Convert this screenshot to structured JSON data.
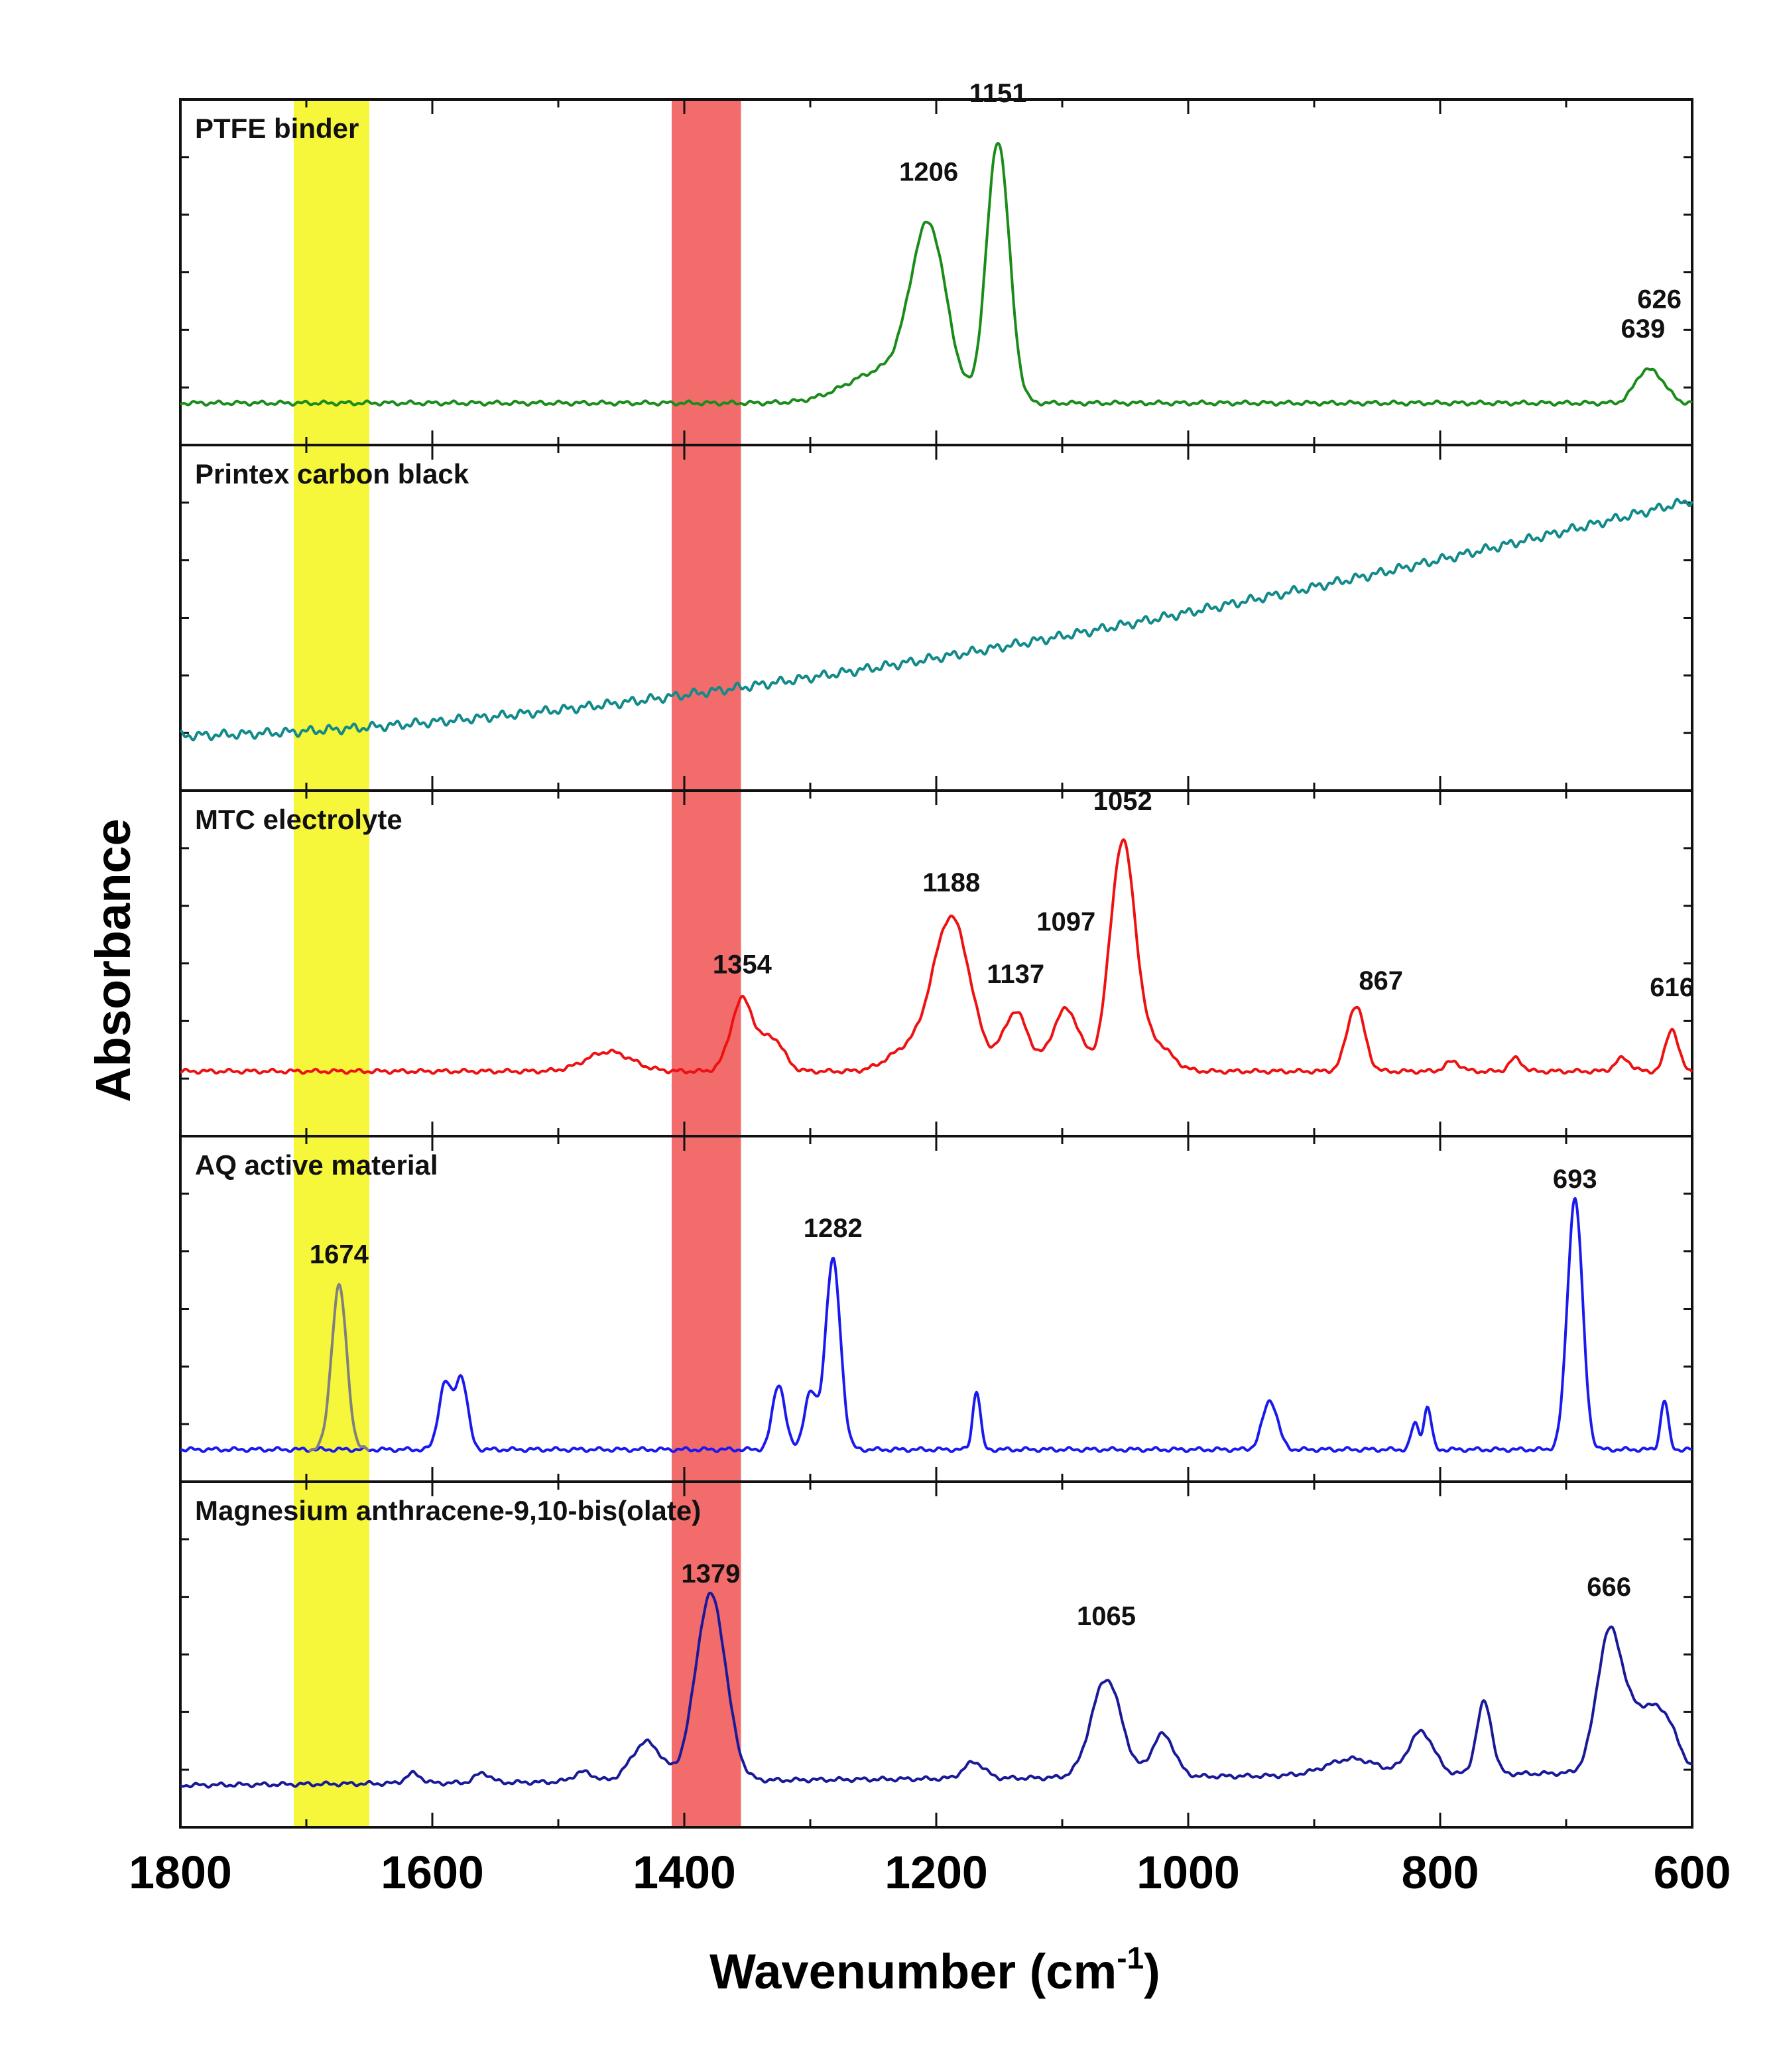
{
  "chart_data": {
    "type": "line",
    "title": "",
    "xlabel": "Wavenumber (cm",
    "xlabel_superscript": "-1",
    "xlabel_close": ")",
    "ylabel": "Absorbance",
    "xlim": [
      1800,
      600
    ],
    "x_ticks": [
      1800,
      1600,
      1400,
      1200,
      1000,
      800,
      600
    ],
    "highlight_bands": [
      {
        "name": "yellow-band",
        "range": [
          1710,
          1650
        ],
        "color": "#f5f52a"
      },
      {
        "name": "red-band",
        "range": [
          1410,
          1355
        ],
        "color": "#f26060"
      }
    ],
    "panels": [
      {
        "name": "ptfe",
        "title": "PTFE binder",
        "color": "#1a8c1a",
        "baseline": 0.1,
        "slope": 0.0,
        "peaks": [
          {
            "x": 1206,
            "h": 0.5,
            "w": 14
          },
          {
            "x": 1151,
            "h": 0.8,
            "w": 9
          },
          {
            "x": 1240,
            "h": 0.1,
            "w": 30
          },
          {
            "x": 639,
            "h": 0.08,
            "w": 8
          },
          {
            "x": 626,
            "h": 0.06,
            "w": 8
          }
        ],
        "labels": [
          {
            "text": "1206",
            "x": 1206,
            "y": 0.78
          },
          {
            "text": "1151",
            "x": 1151,
            "y": 1.02
          },
          {
            "text": "639",
            "x": 639,
            "y": 0.3
          },
          {
            "text": "626",
            "x": 626,
            "y": 0.39
          }
        ]
      },
      {
        "name": "printex",
        "title": "Printex carbon black",
        "color": "#128a8a",
        "baseline": 0.14,
        "slope": 0.72,
        "curve": 1.6,
        "peaks": [],
        "labels": []
      },
      {
        "name": "mtc",
        "title": "MTC electrolyte",
        "color": "#ee1111",
        "baseline": 0.17,
        "slope": 0.0,
        "peaks": [
          {
            "x": 1460,
            "h": 0.06,
            "w": 18
          },
          {
            "x": 1354,
            "h": 0.22,
            "w": 9
          },
          {
            "x": 1330,
            "h": 0.1,
            "w": 9
          },
          {
            "x": 1225,
            "h": 0.06,
            "w": 15
          },
          {
            "x": 1188,
            "h": 0.47,
            "w": 15
          },
          {
            "x": 1137,
            "h": 0.18,
            "w": 10
          },
          {
            "x": 1097,
            "h": 0.19,
            "w": 11
          },
          {
            "x": 1052,
            "h": 0.7,
            "w": 10
          },
          {
            "x": 1025,
            "h": 0.08,
            "w": 12
          },
          {
            "x": 867,
            "h": 0.2,
            "w": 7
          },
          {
            "x": 790,
            "h": 0.03,
            "w": 6
          },
          {
            "x": 740,
            "h": 0.04,
            "w": 5
          },
          {
            "x": 655,
            "h": 0.04,
            "w": 6
          },
          {
            "x": 616,
            "h": 0.13,
            "w": 5
          }
        ],
        "labels": [
          {
            "text": "1354",
            "x": 1354,
            "y": 0.47
          },
          {
            "text": "1188",
            "x": 1188,
            "y": 0.72
          },
          {
            "text": "1137",
            "x": 1137,
            "y": 0.44
          },
          {
            "text": "1097",
            "x": 1097,
            "y": 0.6
          },
          {
            "text": "1052",
            "x": 1052,
            "y": 0.97
          },
          {
            "text": "867",
            "x": 847,
            "y": 0.42
          },
          {
            "text": "616",
            "x": 616,
            "y": 0.4
          }
        ]
      },
      {
        "name": "aq",
        "title": "AQ active material",
        "color": "#1a1aee",
        "baseline": 0.07,
        "slope": 0.0,
        "peaks": [
          {
            "x": 1674,
            "h": 0.5,
            "w": 6,
            "color": "#808080"
          },
          {
            "x": 1590,
            "h": 0.2,
            "w": 5
          },
          {
            "x": 1577,
            "h": 0.22,
            "w": 5
          },
          {
            "x": 1325,
            "h": 0.2,
            "w": 5
          },
          {
            "x": 1300,
            "h": 0.17,
            "w": 5
          },
          {
            "x": 1282,
            "h": 0.58,
            "w": 6
          },
          {
            "x": 1168,
            "h": 0.18,
            "w": 3
          },
          {
            "x": 935,
            "h": 0.15,
            "w": 6
          },
          {
            "x": 820,
            "h": 0.08,
            "w": 3
          },
          {
            "x": 810,
            "h": 0.13,
            "w": 3
          },
          {
            "x": 693,
            "h": 0.77,
            "w": 6
          },
          {
            "x": 622,
            "h": 0.15,
            "w": 3
          }
        ],
        "labels": [
          {
            "text": "1674",
            "x": 1674,
            "y": 0.64
          },
          {
            "text": "1282",
            "x": 1282,
            "y": 0.72
          },
          {
            "text": "693",
            "x": 693,
            "y": 0.87
          }
        ]
      },
      {
        "name": "mg",
        "title": "Magnesium anthracene-9,10-bis(olate)",
        "color": "#1a1a99",
        "baseline": 0.1,
        "slope": 0.04,
        "peaks": [
          {
            "x": 1615,
            "h": 0.03,
            "w": 6
          },
          {
            "x": 1560,
            "h": 0.03,
            "w": 6
          },
          {
            "x": 1480,
            "h": 0.03,
            "w": 8
          },
          {
            "x": 1430,
            "h": 0.12,
            "w": 12
          },
          {
            "x": 1379,
            "h": 0.57,
            "w": 12
          },
          {
            "x": 1170,
            "h": 0.05,
            "w": 8
          },
          {
            "x": 1065,
            "h": 0.3,
            "w": 12
          },
          {
            "x": 1020,
            "h": 0.13,
            "w": 9
          },
          {
            "x": 870,
            "h": 0.05,
            "w": 20
          },
          {
            "x": 815,
            "h": 0.13,
            "w": 10
          },
          {
            "x": 765,
            "h": 0.22,
            "w": 6
          },
          {
            "x": 666,
            "h": 0.4,
            "w": 10
          },
          {
            "x": 640,
            "h": 0.18,
            "w": 15
          },
          {
            "x": 620,
            "h": 0.1,
            "w": 10
          }
        ],
        "labels": [
          {
            "text": "1379",
            "x": 1379,
            "y": 0.72
          },
          {
            "text": "1065",
            "x": 1065,
            "y": 0.59
          },
          {
            "text": "666",
            "x": 666,
            "y": 0.68
          }
        ]
      }
    ]
  }
}
